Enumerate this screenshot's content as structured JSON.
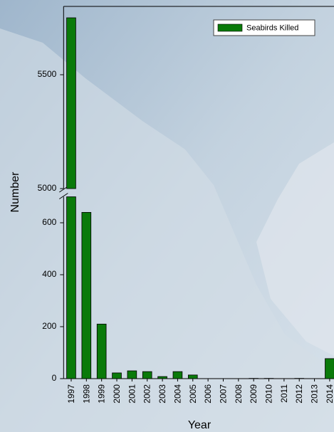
{
  "chart_data": {
    "type": "bar",
    "categories": [
      "1997",
      "1998",
      "1999",
      "2000",
      "2001",
      "2002",
      "2003",
      "2004",
      "2005",
      "2006",
      "2007",
      "2008",
      "2009",
      "2010",
      "2011",
      "2012",
      "2013",
      "2014"
    ],
    "series": [
      {
        "name": "Seabirds Killed",
        "color": "#0a7a0a",
        "values": [
          5750,
          640,
          210,
          22,
          30,
          27,
          8,
          27,
          14,
          0,
          0,
          0,
          1,
          1,
          0,
          1,
          0,
          77
        ]
      }
    ],
    "xlabel": "Year",
    "ylabel": "Number",
    "ylim": [
      0,
      700
    ],
    "yticks": [
      0,
      200,
      400,
      600
    ],
    "ylim_upper": [
      5000,
      5800
    ],
    "yticks_upper": [
      5000,
      5500
    ],
    "axis_break": true,
    "legend": "upper right"
  }
}
